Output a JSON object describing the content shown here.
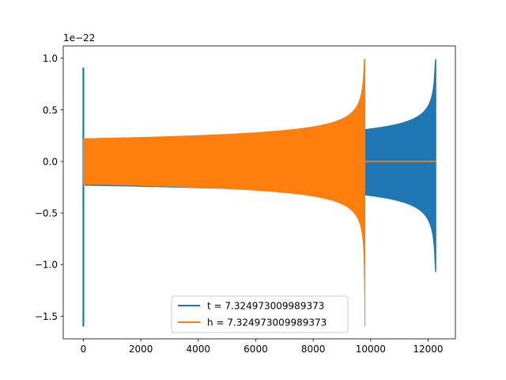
{
  "chart_data": {
    "type": "line",
    "title": "",
    "xlabel": "",
    "ylabel": "",
    "y_offset_label": "1e−22",
    "xlim": [
      -700,
      12950
    ],
    "ylim": [
      -1.72,
      1.12
    ],
    "x_ticks": [
      0,
      2000,
      4000,
      6000,
      8000,
      10000,
      12000
    ],
    "x_tick_labels": [
      "0",
      "2000",
      "4000",
      "6000",
      "8000",
      "10000",
      "12000"
    ],
    "y_ticks": [
      1.0,
      0.5,
      0.0,
      -0.5,
      -1.0,
      -1.5
    ],
    "y_tick_labels": [
      "1.0",
      "0.5",
      "0.0",
      "−0.5",
      "−1.0",
      "−1.5"
    ],
    "grid": false,
    "legend_position": "lower center",
    "series": [
      {
        "name": "t = 7.324973009989373",
        "color": "#1f77b4",
        "description_values": {
          "x_range": [
            0,
            12270
          ],
          "initial_spike": {
            "x": 0,
            "max": 0.91,
            "min": -1.6
          },
          "start_amplitude": 0.22,
          "amplitude_at_9800": 0.31,
          "peak_x": 12270,
          "peak_max": 0.99,
          "peak_min": -1.07
        }
      },
      {
        "name": "h = 7.324973009989373",
        "color": "#ff7f0e",
        "description_values": {
          "x_range": [
            0,
            12270
          ],
          "start_amplitude": 0.22,
          "peak_x": 9800,
          "peak_max": 0.99,
          "peak_min": -1.6,
          "after_peak_value": 0.0
        }
      }
    ]
  }
}
